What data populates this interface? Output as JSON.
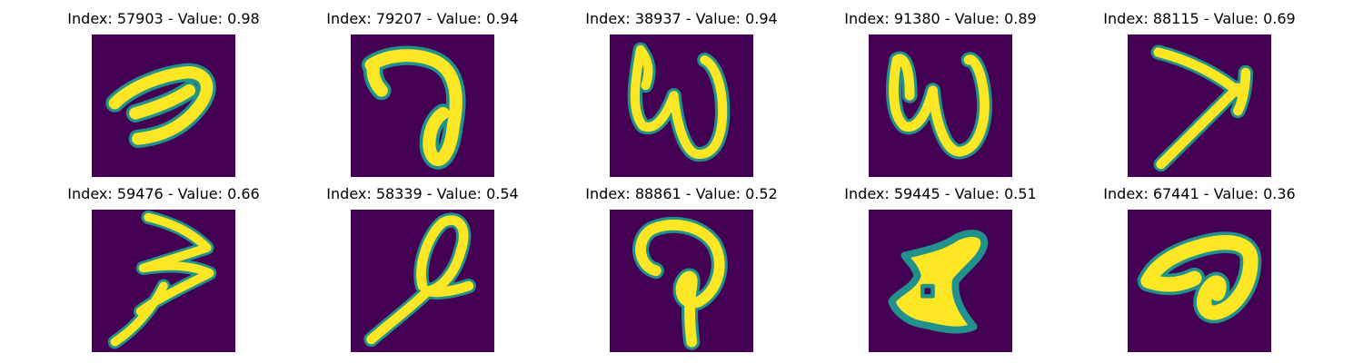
{
  "figure": {
    "panels": [
      {
        "title": "Index: 57903 - Value: 0.98",
        "index": 57903,
        "value": 0.98
      },
      {
        "title": "Index: 79207 - Value: 0.94",
        "index": 79207,
        "value": 0.94
      },
      {
        "title": "Index: 38937 - Value: 0.94",
        "index": 38937,
        "value": 0.94
      },
      {
        "title": "Index: 91380 - Value: 0.89",
        "index": 91380,
        "value": 0.89
      },
      {
        "title": "Index: 88115 - Value: 0.69",
        "index": 88115,
        "value": 0.69
      },
      {
        "title": "Index: 59476 - Value: 0.66",
        "index": 59476,
        "value": 0.66
      },
      {
        "title": "Index: 58339 - Value: 0.54",
        "index": 58339,
        "value": 0.54
      },
      {
        "title": "Index: 88861 - Value: 0.52",
        "index": 88861,
        "value": 0.52
      },
      {
        "title": "Index: 59445 - Value: 0.51",
        "index": 59445,
        "value": 0.51
      },
      {
        "title": "Index: 67441 - Value: 0.36",
        "index": 67441,
        "value": 0.36
      }
    ],
    "colors": {
      "background": "#440154",
      "stroke_edge": "#21918c",
      "stroke_core": "#fde725"
    }
  }
}
